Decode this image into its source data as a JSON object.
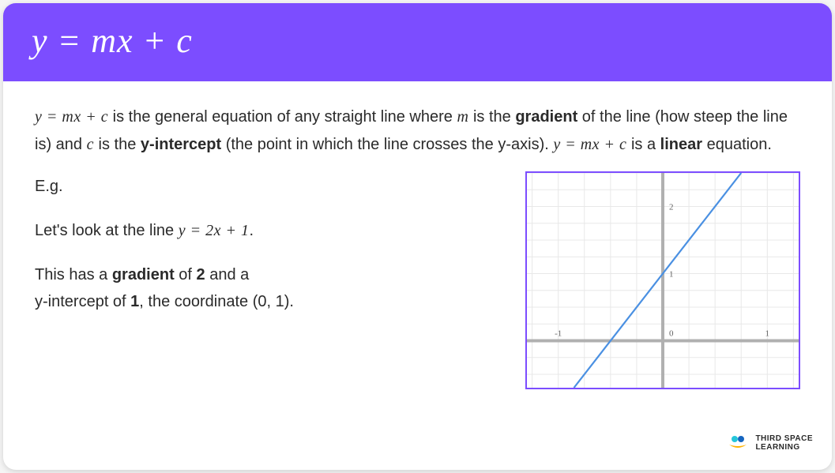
{
  "header": {
    "equation": "y = mx + c"
  },
  "intro": {
    "eq1": "y = mx + c",
    "text1_a": " is the general equation of any straight line where ",
    "m": "m",
    "text1_b": " is the ",
    "bold1": "gradient",
    "text1_c": " of the line (how steep the line is) and ",
    "c": "c",
    "text1_d": " is the ",
    "bold2": "y-intercept",
    "text1_e": " (the point in which the line crosses the y-axis). ",
    "eq2": "y = mx + c",
    "text1_f": " is a ",
    "bold3": "linear",
    "text1_g": " equation."
  },
  "example": {
    "eg": "E.g.",
    "line1_a": "Let's look at the line ",
    "line1_eq": "y = 2x + 1",
    "line1_b": ".",
    "line2_a": "This has a ",
    "line2_bold1": "gradient",
    "line2_b": " of ",
    "line2_bold2": "2",
    "line2_c": " and a",
    "line3_a": "y-intercept of ",
    "line3_bold1": "1",
    "line3_b": ", the coordinate (0, 1)."
  },
  "chart": {
    "type": "line",
    "xlim": [
      -1.3,
      1.3
    ],
    "ylim": [
      -0.7,
      2.5
    ],
    "grid_color": "#e8e8e8",
    "axis_color": "#b0b0b0",
    "axis_width": 4,
    "grid_step": 0.25,
    "background_color": "#ffffff",
    "border_color": "#7c4dff",
    "tick_labels": {
      "x": [
        {
          "v": -1,
          "t": "-1"
        },
        {
          "v": 0,
          "t": "0"
        },
        {
          "v": 1,
          "t": "1"
        }
      ],
      "y": [
        {
          "v": 1,
          "t": "1"
        },
        {
          "v": 2,
          "t": "2"
        }
      ]
    },
    "tick_font_size": 11,
    "tick_color": "#606060",
    "line": {
      "slope": 2,
      "intercept": 1,
      "color": "#4a90e2",
      "width": 2.2
    }
  },
  "logo": {
    "line1": "THIRD SPACE",
    "line2": "LEARNING",
    "dot_colors": [
      "#26c6da",
      "#1565c0",
      "#ffb300"
    ]
  }
}
